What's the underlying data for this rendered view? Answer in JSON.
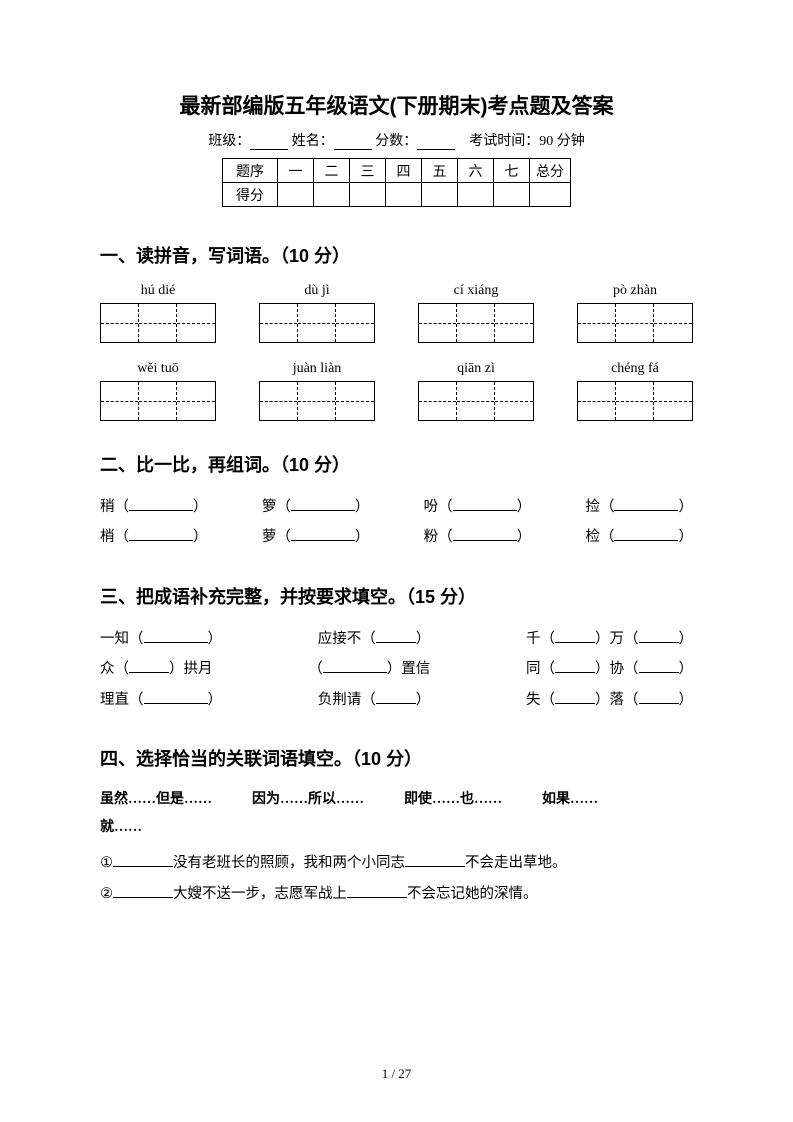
{
  "title": "最新部编版五年级语文(下册期末)考点题及答案",
  "info": {
    "class_label": "班级：",
    "name_label": "姓名：",
    "score_label": "分数：",
    "time_label": "考试时间：90 分钟"
  },
  "score_table": {
    "row1": [
      "题序",
      "一",
      "二",
      "三",
      "四",
      "五",
      "六",
      "七",
      "总分"
    ],
    "row2_label": "得分"
  },
  "sections": {
    "s1": {
      "heading": "一、读拼音，写词语。（10 分）",
      "row1": [
        "hú dié",
        "dù jì",
        "cí xiáng",
        "pò zhàn"
      ],
      "row2": [
        "wěi tuō",
        "juàn liàn",
        "qiān zì",
        "chéng fá"
      ]
    },
    "s2": {
      "heading": "二、比一比，再组词。（10 分）",
      "pairs": [
        [
          "稍",
          "箩",
          "吩",
          "捡"
        ],
        [
          "梢",
          "萝",
          "粉",
          "检"
        ]
      ]
    },
    "s3": {
      "heading": "三、把成语补充完整，并按要求填空。（15 分）",
      "lines": [
        [
          {
            "pre": "一知",
            "blanks": [
              64
            ],
            "post": ""
          },
          {
            "pre": "应接不",
            "blanks": [
              40
            ],
            "post": ""
          },
          {
            "pre": "千",
            "blanks": [
              40
            ],
            "mid": "万",
            "blanks2": [
              40
            ],
            "post": ""
          }
        ],
        [
          {
            "pre": "众",
            "blanks": [
              40
            ],
            "post": "拱月"
          },
          {
            "pre": "",
            "blanks": [
              64
            ],
            "post": "置信"
          },
          {
            "pre": "同",
            "blanks": [
              40
            ],
            "mid": "协",
            "blanks2": [
              40
            ],
            "post": ""
          }
        ],
        [
          {
            "pre": "理直",
            "blanks": [
              64
            ],
            "post": ""
          },
          {
            "pre": "负荆请",
            "blanks": [
              40
            ],
            "post": ""
          },
          {
            "pre": "失",
            "blanks": [
              40
            ],
            "mid": "落",
            "blanks2": [
              40
            ],
            "post": ""
          }
        ]
      ]
    },
    "s4": {
      "heading": "四、选择恰当的关联词语填空。（10 分）",
      "options": [
        "虽然……但是……",
        "因为……所以……",
        "即使……也……",
        "如果……"
      ],
      "options_cont": "就……",
      "lines": [
        {
          "n": "①",
          "parts": [
            "",
            "没有老班长的照顾，我和两个小同志",
            "不会走出草地。"
          ]
        },
        {
          "n": "②",
          "parts": [
            "",
            "大嫂不送一步，志愿军战上",
            "不会忘记她的深情。"
          ]
        }
      ]
    }
  },
  "page_num": "1 / 27"
}
